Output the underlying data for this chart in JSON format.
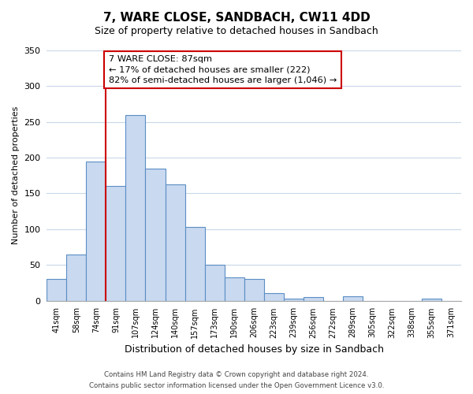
{
  "title": "7, WARE CLOSE, SANDBACH, CW11 4DD",
  "subtitle": "Size of property relative to detached houses in Sandbach",
  "xlabel": "Distribution of detached houses by size in Sandbach",
  "ylabel": "Number of detached properties",
  "bin_labels": [
    "41sqm",
    "58sqm",
    "74sqm",
    "91sqm",
    "107sqm",
    "124sqm",
    "140sqm",
    "157sqm",
    "173sqm",
    "190sqm",
    "206sqm",
    "223sqm",
    "239sqm",
    "256sqm",
    "272sqm",
    "289sqm",
    "305sqm",
    "322sqm",
    "338sqm",
    "355sqm",
    "371sqm"
  ],
  "bar_heights": [
    30,
    65,
    195,
    160,
    260,
    185,
    163,
    103,
    50,
    32,
    30,
    10,
    3,
    5,
    0,
    6,
    0,
    0,
    0,
    3,
    0
  ],
  "bar_color": "#c9d9f0",
  "bar_edge_color": "#5b8ec4",
  "vline_x": 3.0,
  "vline_color": "#cc0000",
  "ylim": [
    0,
    350
  ],
  "yticks": [
    0,
    50,
    100,
    150,
    200,
    250,
    300,
    350
  ],
  "annotation_text": "7 WARE CLOSE: 87sqm\n← 17% of detached houses are smaller (222)\n82% of semi-detached houses are larger (1,046) →",
  "annotation_box_color": "#ffffff",
  "annotation_box_edge": "#cc0000",
  "footer_line1": "Contains HM Land Registry data © Crown copyright and database right 2024.",
  "footer_line2": "Contains public sector information licensed under the Open Government Licence v3.0.",
  "background_color": "#ffffff",
  "grid_color": "#c8d8e8"
}
